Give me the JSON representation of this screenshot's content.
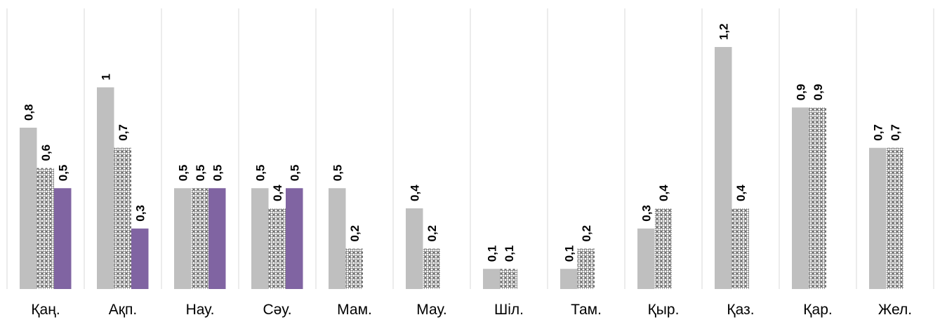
{
  "chart_data": {
    "type": "bar",
    "categories": [
      "Қаң.",
      "Ақп.",
      "Нау.",
      "Сәу.",
      "Мам.",
      "Мау.",
      "Шіл.",
      "Там.",
      "Қыр.",
      "Қаз.",
      "Қар.",
      "Жел."
    ],
    "series": [
      {
        "values": [
          0.8,
          1,
          0.5,
          0.5,
          0.5,
          0.4,
          0.1,
          0.1,
          0.3,
          1.2,
          0.9,
          0.7
        ],
        "color": "#bfbfbf",
        "pattern": "solid"
      },
      {
        "values": [
          0.6,
          0.7,
          0.5,
          0.4,
          0.2,
          0.2,
          0.1,
          0.2,
          0.4,
          0.4,
          0.9,
          0.7
        ],
        "color": "#bfbfbf",
        "pattern": "crosshatch"
      },
      {
        "values": [
          0.5,
          0.3,
          0.5,
          0.5,
          null,
          null,
          null,
          null,
          null,
          null,
          null,
          null
        ],
        "color": "#8064a2",
        "pattern": "solid"
      }
    ],
    "data_labels": [
      [
        "0,8",
        "1",
        "0,5",
        "0,5",
        "0,5",
        "0,4",
        "0,1",
        "0,1",
        "0,3",
        "1,2",
        "0,9",
        "0,7"
      ],
      [
        "0,6",
        "0,7",
        "0,5",
        "0,4",
        "0,2",
        "0,2",
        "0,1",
        "0,2",
        "0,4",
        "0,4",
        "0,9",
        "0,7"
      ],
      [
        "0,5",
        "0,3",
        "0,5",
        "0,5",
        "",
        "",
        "",
        "",
        "",
        "",
        "",
        ""
      ]
    ],
    "ylim": [
      0,
      1.2
    ],
    "grid": false,
    "category_dividers": true,
    "title": "",
    "xlabel": "",
    "ylabel": ""
  }
}
